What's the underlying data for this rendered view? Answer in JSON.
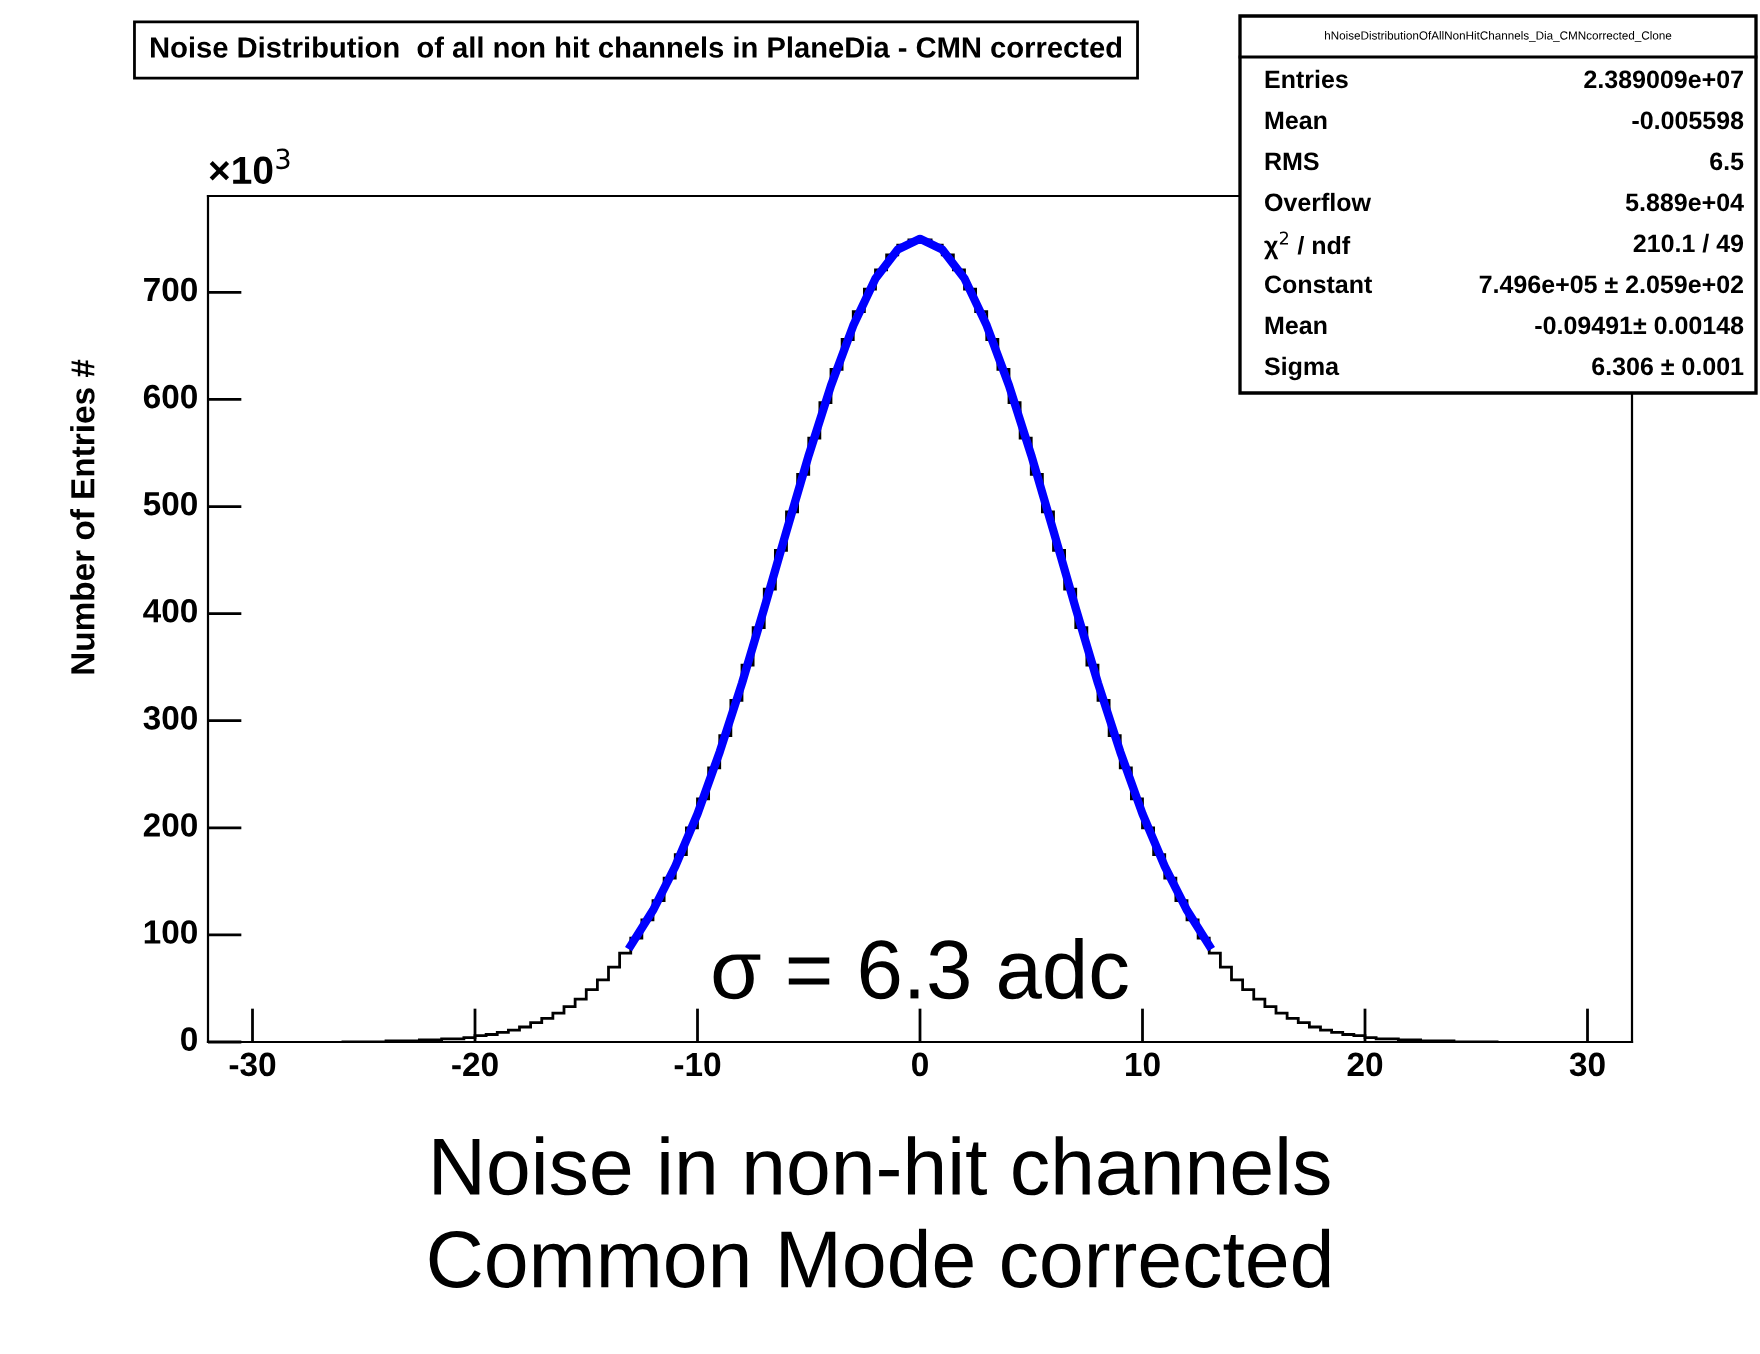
{
  "chart_data": {
    "type": "histogram",
    "title": "Noise Distribution  of all non hit channels in PlaneDia - CMN corrected",
    "ylabel": "Number of Entries #",
    "xlim": [
      -32,
      32
    ],
    "xticks": [
      -30,
      -20,
      -10,
      0,
      10,
      20,
      30
    ],
    "ylim": [
      0,
      790
    ],
    "yticks": [
      0,
      100,
      200,
      300,
      400,
      500,
      600,
      700
    ],
    "grid": false,
    "legend": false,
    "series": [
      {
        "color": "#000000",
        "bins": [
          -26,
          -25.5,
          -25,
          -24.5,
          -24,
          -23.5,
          -23,
          -22.5,
          -22,
          -21.5,
          -21,
          -20.5,
          -20,
          -19.5,
          -19,
          -18.5,
          -18,
          -17.5,
          -17,
          -16.5,
          -16,
          -15.5,
          -15,
          -14.5,
          -14,
          -13.5,
          -13,
          -12.5,
          -12,
          -11.5,
          -11,
          -10.5,
          -10,
          -9.5,
          -9,
          -8.5,
          -8,
          -7.5,
          -7,
          -6.5,
          -6,
          -5.5,
          -5,
          -4.5,
          -4,
          -3.5,
          -3,
          -2.5,
          -2,
          -1.5,
          -1,
          -0.5,
          0,
          0.5,
          1,
          1.5,
          2,
          2.5,
          3,
          3.5,
          4,
          4.5,
          5,
          5.5,
          6,
          6.5,
          7,
          7.5,
          8,
          8.5,
          9,
          9.5,
          10,
          10.5,
          11,
          11.5,
          12,
          12.5,
          13,
          13.5,
          14,
          14.5,
          15,
          15.5,
          16,
          16.5,
          17,
          17.5,
          18,
          18.5,
          19,
          19.5,
          20,
          20.5,
          21,
          21.5,
          22,
          22.5,
          23,
          23.5,
          24,
          24.5,
          25,
          25.5,
          26
        ],
        "values": [
          0,
          0,
          0,
          0,
          1,
          1,
          1,
          2,
          2,
          3,
          3,
          4,
          6,
          7,
          9,
          11,
          14,
          18,
          22,
          27,
          33,
          40,
          49,
          58,
          70,
          83,
          97,
          114,
          132,
          153,
          175,
          200,
          227,
          256,
          286,
          319,
          352,
          387,
          423,
          459,
          495,
          530,
          564,
          597,
          628,
          656,
          682,
          703,
          721,
          735,
          744,
          749,
          749,
          744,
          735,
          721,
          703,
          682,
          656,
          628,
          597,
          564,
          530,
          495,
          459,
          423,
          387,
          352,
          319,
          286,
          256,
          227,
          200,
          175,
          153,
          132,
          114,
          97,
          83,
          70,
          58,
          49,
          40,
          33,
          27,
          22,
          18,
          14,
          11,
          9,
          7,
          6,
          4,
          3,
          3,
          2,
          2,
          1,
          1,
          1,
          0,
          0,
          0,
          0
        ]
      },
      {
        "type": "line",
        "color": "#0000ff",
        "x": [
          -13,
          -12,
          -11,
          -10,
          -9,
          -8,
          -7,
          -6,
          -5,
          -4,
          -3,
          -2,
          -1,
          0,
          1,
          2,
          3,
          4,
          5,
          6,
          7,
          8,
          9,
          10,
          11,
          12,
          13
        ],
        "values": [
          90,
          123,
          164,
          213,
          271,
          335,
          405,
          477,
          548,
          613,
          669,
          713,
          740,
          750,
          740,
          713,
          669,
          613,
          548,
          477,
          405,
          335,
          271,
          213,
          164,
          123,
          90
        ]
      }
    ],
    "annotations": [
      "×10$^{3}$",
      "σ = 6.3 adc",
      "Noise in non-hit channels\nCommon Mode corrected",
      "hNoiseDistributionOfAllNonHitChannels_Dia_CMNcorrected_Clone",
      "Entries\t2.389009e+07",
      "Mean\t-0.005598",
      "RMS\t6.5",
      "Overflow\t5.889e+04",
      "χ$^{2}$ / ndf\t210.1 / 49",
      "Constant\t7.496e+05 ± 2.059e+02",
      "Mean\t-0.09491± 0.00148",
      "Sigma\t6.306 ± 0.001"
    ]
  }
}
